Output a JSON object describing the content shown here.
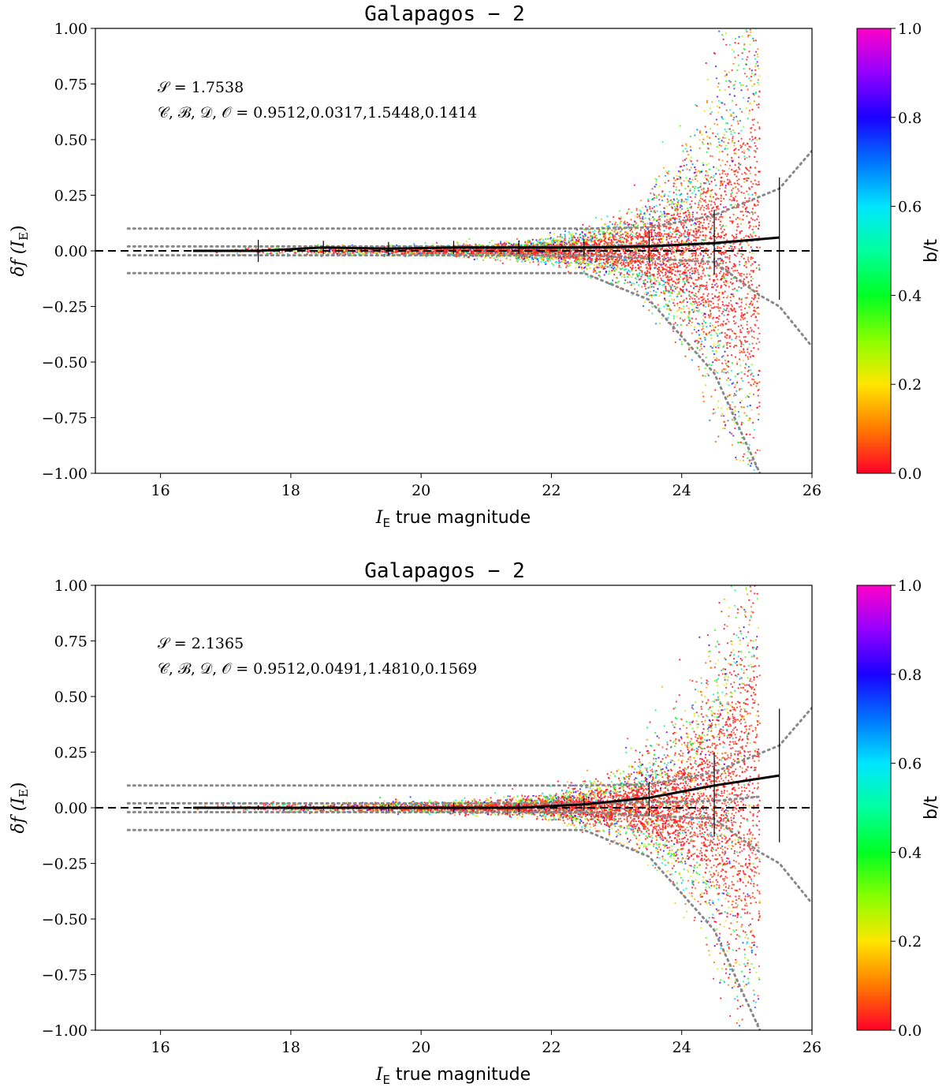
{
  "chart_data": [
    {
      "type": "scatter",
      "title": "Galapagos − 2",
      "xlabel_symbol": "I",
      "xlabel_subscript": "E",
      "xlabel_suffix": "true magnitude",
      "ylabel": "δf (I",
      "ylabel_sub": "E",
      "ylabel_end": ")",
      "xlim": [
        15,
        26
      ],
      "ylim": [
        -1.0,
        1.0
      ],
      "xticks": [
        16,
        18,
        20,
        22,
        24,
        26
      ],
      "xtick_labels": [
        "16",
        "18",
        "20",
        "22",
        "24",
        "26"
      ],
      "yticks": [
        1.0,
        0.75,
        0.5,
        0.25,
        0.0,
        -0.25,
        -0.5,
        -0.75,
        -1.0
      ],
      "ytick_labels": [
        "1.00",
        "0.75",
        "0.50",
        "0.25",
        "0.00",
        "−0.25",
        "−0.50",
        "−0.75",
        "−1.00"
      ],
      "annotation_s": "𝒮 = 1.7538",
      "annotation_params": "𝒞, ℬ, 𝒟, 𝒪 = 0.9512,0.0317,1.5448,0.1414",
      "scatter_mag_max": 25.2,
      "scatter_offset": 0.0,
      "scatter_color_bias": 0.35,
      "mean_line": {
        "x": [
          16.5,
          17.5,
          18.5,
          19.5,
          20.5,
          21.5,
          22.5,
          23.5,
          24.5,
          25.5
        ],
        "y": [
          0.0,
          0.0,
          0.015,
          0.01,
          0.015,
          0.015,
          0.015,
          0.02,
          0.035,
          0.06
        ]
      },
      "error_bars": {
        "x": [
          17.5,
          18.5,
          19.5,
          20.5,
          21.5,
          22.5,
          23.5,
          24.5,
          25.5
        ],
        "y": [
          0.0,
          0.015,
          0.01,
          0.015,
          0.015,
          0.015,
          0.02,
          0.035,
          0.06
        ],
        "err_low": [
          0.05,
          0.03,
          0.03,
          0.03,
          0.03,
          0.04,
          0.07,
          0.14,
          0.28
        ],
        "err_high": [
          0.05,
          0.03,
          0.03,
          0.03,
          0.03,
          0.04,
          0.07,
          0.15,
          0.27
        ]
      },
      "dotted_bounds": {
        "upper_outer_x": [
          15.5,
          22.5,
          23.5,
          24.5,
          25.5,
          26.0
        ],
        "upper_outer_y": [
          0.1,
          0.1,
          0.105,
          0.16,
          0.28,
          0.45
        ],
        "lower_outer_x": [
          15.5,
          22.5,
          23.5,
          24.5,
          25.2
        ],
        "lower_outer_y": [
          -0.1,
          -0.1,
          -0.22,
          -0.55,
          -1.0
        ],
        "upper_inner_x": [
          15.5,
          22.5,
          24.5,
          25.2
        ],
        "upper_inner_y": [
          0.02,
          0.02,
          0.03,
          0.05
        ],
        "lower_inner_x": [
          15.5,
          22.5,
          24.5,
          25.2,
          25.5,
          26.0
        ],
        "lower_inner_y": [
          -0.02,
          -0.02,
          -0.05,
          -0.2,
          -0.25,
          -0.43
        ]
      }
    },
    {
      "type": "scatter",
      "title": "Galapagos − 2",
      "xlabel_symbol": "I",
      "xlabel_subscript": "E",
      "xlabel_suffix": "true magnitude",
      "ylabel": "δf (I",
      "ylabel_sub": "E",
      "ylabel_end": ")",
      "xlim": [
        15,
        26
      ],
      "ylim": [
        -1.0,
        1.0
      ],
      "xticks": [
        16,
        18,
        20,
        22,
        24,
        26
      ],
      "xtick_labels": [
        "16",
        "18",
        "20",
        "22",
        "24",
        "26"
      ],
      "yticks": [
        1.0,
        0.75,
        0.5,
        0.25,
        0.0,
        -0.25,
        -0.5,
        -0.75,
        -1.0
      ],
      "ytick_labels": [
        "1.00",
        "0.75",
        "0.50",
        "0.25",
        "0.00",
        "−0.25",
        "−0.50",
        "−0.75",
        "−1.00"
      ],
      "annotation_s": "𝒮 = 2.1365",
      "annotation_params": "𝒞, ℬ, 𝒟, 𝒪 = 0.9512,0.0491,1.4810,0.1569",
      "scatter_mag_max": 25.2,
      "scatter_offset": 0.06,
      "scatter_color_bias": 0.6,
      "mean_line": {
        "x": [
          16.5,
          17.5,
          18.5,
          19.5,
          20.5,
          21.5,
          22.5,
          23.5,
          24.5,
          25.5
        ],
        "y": [
          0.0,
          0.0,
          0.0,
          0.0,
          0.0,
          0.0,
          0.015,
          0.045,
          0.1,
          0.145
        ]
      },
      "error_bars": {
        "x": [
          17.5,
          18.5,
          19.5,
          20.5,
          21.5,
          22.5,
          23.5,
          24.5,
          25.5
        ],
        "y": [
          0.0,
          0.0,
          0.0,
          0.0,
          0.0,
          0.015,
          0.045,
          0.1,
          0.145
        ],
        "err_low": [
          0.01,
          0.01,
          0.015,
          0.02,
          0.02,
          0.03,
          0.08,
          0.23,
          0.3
        ],
        "err_high": [
          0.01,
          0.01,
          0.015,
          0.02,
          0.02,
          0.03,
          0.07,
          0.15,
          0.3
        ]
      },
      "dotted_bounds": {
        "upper_outer_x": [
          15.5,
          22.5,
          23.5,
          24.5,
          25.5,
          26.0
        ],
        "upper_outer_y": [
          0.1,
          0.1,
          0.105,
          0.16,
          0.28,
          0.45
        ],
        "lower_outer_x": [
          15.5,
          22.5,
          23.5,
          24.5,
          25.2
        ],
        "lower_outer_y": [
          -0.1,
          -0.1,
          -0.22,
          -0.55,
          -1.0
        ],
        "upper_inner_x": [
          15.5,
          22.5,
          24.5,
          25.2
        ],
        "upper_inner_y": [
          0.02,
          0.02,
          0.03,
          0.05
        ],
        "lower_inner_x": [
          15.5,
          22.5,
          24.5,
          25.2,
          25.5,
          26.0
        ],
        "lower_inner_y": [
          -0.02,
          -0.02,
          -0.05,
          -0.2,
          -0.25,
          -0.43
        ]
      }
    }
  ],
  "colorbar": {
    "label": "b/t",
    "ticks": [
      0.0,
      0.2,
      0.4,
      0.6,
      0.8,
      1.0
    ],
    "tick_labels": [
      "0.0",
      "0.2",
      "0.4",
      "0.6",
      "0.8",
      "1.0"
    ],
    "colormap": "gist_rainbow_r"
  }
}
